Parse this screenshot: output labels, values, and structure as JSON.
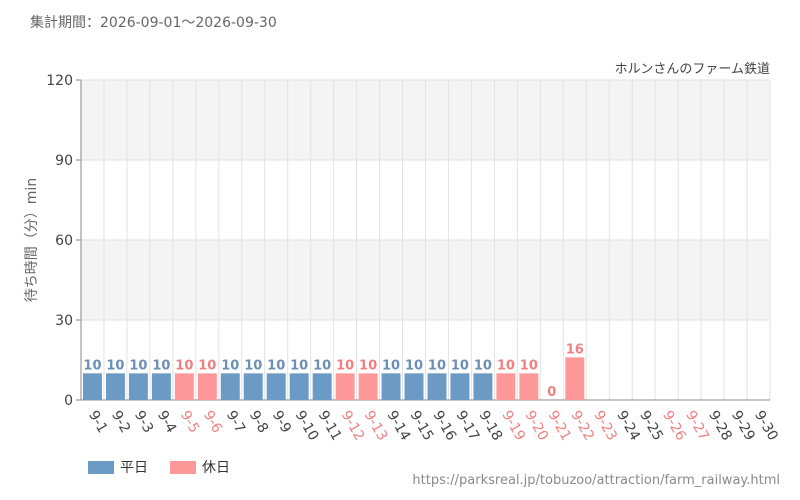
{
  "header": {
    "period_label": "集計期間：2026-09-01～2026-09-30"
  },
  "source_url": "https://parksreal.jp/tobuzoo/attraction/farm_railway.html",
  "colors": {
    "weekday": "#6b9ac4",
    "holiday": "#ff9999",
    "holiday_text": "#f08080",
    "weekday_text": "#6b8fb5",
    "axis_text": "#444444",
    "band": "#f4f4f4",
    "grid": "#e2e2e2"
  },
  "chart_data": {
    "type": "bar",
    "title": "ホルンさんのファーム鉄道",
    "ylabel": "待ち時間（分）min",
    "xlabel": "",
    "ylim": [
      0,
      120
    ],
    "yticks": [
      "0",
      "30",
      "60",
      "90",
      "120"
    ],
    "categories": [
      "9-1",
      "9-2",
      "9-3",
      "9-4",
      "9-5",
      "9-6",
      "9-7",
      "9-8",
      "9-9",
      "9-10",
      "9-11",
      "9-12",
      "9-13",
      "9-14",
      "9-15",
      "9-16",
      "9-17",
      "9-18",
      "9-19",
      "9-20",
      "9-21",
      "9-22",
      "9-23",
      "9-24",
      "9-25",
      "9-26",
      "9-27",
      "9-28",
      "9-29",
      "9-30"
    ],
    "values": [
      10,
      10,
      10,
      10,
      10,
      10,
      10,
      10,
      10,
      10,
      10,
      10,
      10,
      10,
      10,
      10,
      10,
      10,
      10,
      10,
      0,
      16,
      null,
      null,
      null,
      null,
      null,
      null,
      null,
      null
    ],
    "day_type": [
      "平日",
      "平日",
      "平日",
      "平日",
      "休日",
      "休日",
      "平日",
      "平日",
      "平日",
      "平日",
      "平日",
      "休日",
      "休日",
      "平日",
      "平日",
      "平日",
      "平日",
      "平日",
      "休日",
      "休日",
      "休日",
      "休日",
      "休日",
      "平日",
      "平日",
      "休日",
      "休日",
      "平日",
      "平日",
      "平日"
    ],
    "legend": [
      {
        "name": "平日",
        "color": "#6b9ac4"
      },
      {
        "name": "休日",
        "color": "#ff9999"
      }
    ],
    "legend_position": "bottom-left",
    "grid": true
  }
}
